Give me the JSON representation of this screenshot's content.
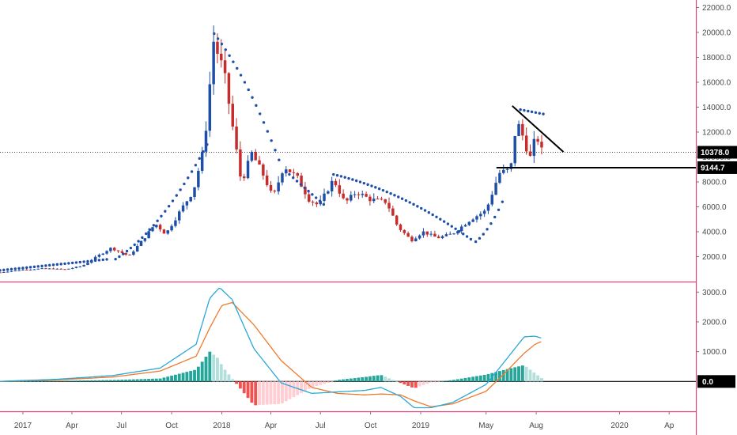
{
  "chart_data": [
    {
      "type": "candlestick",
      "panel": "price",
      "timeframe": "weekly",
      "x_range": [
        "2016-11-20",
        "2020-05-20"
      ],
      "ylim": [
        0,
        22600
      ],
      "y_ticks": [
        2000,
        4000,
        6000,
        8000,
        10000,
        12000,
        14000,
        16000,
        18000,
        20000,
        22000
      ],
      "y_tick_labels": [
        "2000.0",
        "4000.0",
        "6000.0",
        "8000.0",
        "10000.0",
        "12000.0",
        "14000.0",
        "16000.0",
        "18000.0",
        "20000.0",
        "22000.0"
      ],
      "x_ticks": [
        {
          "date": "2017-01-01",
          "label": "2017"
        },
        {
          "date": "2017-04-01",
          "label": "Apr"
        },
        {
          "date": "2017-07-01",
          "label": "Jul"
        },
        {
          "date": "2017-10-01",
          "label": "Oct"
        },
        {
          "date": "2018-01-01",
          "label": "2018"
        },
        {
          "date": "2018-04-01",
          "label": "Apr"
        },
        {
          "date": "2018-07-01",
          "label": "Jul"
        },
        {
          "date": "2018-10-01",
          "label": "Oct"
        },
        {
          "date": "2019-01-01",
          "label": "2019"
        },
        {
          "date": "2019-05-01",
          "label": "May"
        },
        {
          "date": "2019-08-01",
          "label": "Aug"
        },
        {
          "date": "2020-01-01",
          "label": "2020"
        },
        {
          "date": "2020-04-01",
          "label": "Ap"
        }
      ],
      "close_anchors": [
        [
          "2016-11-20",
          740
        ],
        [
          "2017-01-01",
          950
        ],
        [
          "2017-02-10",
          1050
        ],
        [
          "2017-03-20",
          980
        ],
        [
          "2017-04-20",
          1250
        ],
        [
          "2017-05-20",
          2100
        ],
        [
          "2017-06-12",
          2700
        ],
        [
          "2017-07-15",
          2050
        ],
        [
          "2017-08-10",
          3400
        ],
        [
          "2017-09-01",
          4650
        ],
        [
          "2017-09-20",
          3800
        ],
        [
          "2017-10-20",
          5900
        ],
        [
          "2017-11-10",
          7300
        ],
        [
          "2017-11-30",
          10900
        ],
        [
          "2017-12-17",
          19300
        ],
        [
          "2018-01-05",
          16800
        ],
        [
          "2018-01-25",
          11300
        ],
        [
          "2018-02-06",
          7900
        ],
        [
          "2018-02-25",
          10300
        ],
        [
          "2018-03-20",
          8400
        ],
        [
          "2018-04-05",
          6700
        ],
        [
          "2018-04-25",
          9300
        ],
        [
          "2018-05-20",
          8300
        ],
        [
          "2018-06-10",
          6600
        ],
        [
          "2018-06-28",
          6100
        ],
        [
          "2018-07-25",
          8200
        ],
        [
          "2018-08-15",
          6300
        ],
        [
          "2018-09-05",
          7200
        ],
        [
          "2018-09-30",
          6600
        ],
        [
          "2018-10-30",
          6400
        ],
        [
          "2018-11-20",
          4400
        ],
        [
          "2018-12-15",
          3300
        ],
        [
          "2019-01-05",
          4000
        ],
        [
          "2019-02-01",
          3500
        ],
        [
          "2019-03-01",
          3850
        ],
        [
          "2019-04-03",
          5000
        ],
        [
          "2019-05-01",
          5700
        ],
        [
          "2019-05-25",
          8700
        ],
        [
          "2019-06-15",
          9000
        ],
        [
          "2019-06-26",
          12900
        ],
        [
          "2019-07-10",
          11400
        ],
        [
          "2019-07-20",
          9800
        ],
        [
          "2019-08-01",
          11800
        ],
        [
          "2019-08-12",
          10378
        ]
      ],
      "sar_segments": [
        {
          "from": "2016-11-20",
          "to": "2017-06-08",
          "v0": 900,
          "v1": 1800,
          "a": 0
        },
        {
          "from": "2017-06-20",
          "to": "2017-12-05",
          "v0": 1800,
          "v1": 11000,
          "a": 0.5
        },
        {
          "from": "2017-12-18",
          "to": "2018-04-20",
          "v0": 19900,
          "v1": 9300,
          "a": 0.35
        },
        {
          "from": "2018-05-05",
          "to": "2018-07-12",
          "v0": 8600,
          "v1": 6000,
          "a": 0
        },
        {
          "from": "2018-07-25",
          "to": "2019-04-03",
          "v0": 8600,
          "v1": 3400,
          "a": 0.5
        },
        {
          "from": "2019-04-12",
          "to": "2019-06-05",
          "v0": 3200,
          "v1": 6900,
          "a": 0.5
        },
        {
          "from": "2019-07-03",
          "to": "2019-08-20",
          "v0": 13800,
          "v1": 13400,
          "a": 0
        }
      ],
      "trendlines": [
        {
          "from": "2019-06-18",
          "v0": 14100,
          "to": "2019-09-20",
          "v1": 10400
        },
        {
          "from": "2019-05-20",
          "v0": 9144.7,
          "to": "2020-05-20",
          "v1": 9144.7
        }
      ],
      "current_price": {
        "value": 10378.0,
        "label": "10378.0"
      },
      "level_label": {
        "value": 9144.7,
        "label": "9144.7"
      },
      "colors": {
        "up": "#1e4fa8",
        "down": "#c62c2c",
        "sar": "#1e4fa8",
        "line": "#000000"
      }
    },
    {
      "type": "macd",
      "panel": "indicator",
      "ylim": [
        -1000,
        3300
      ],
      "y_ticks": [
        3000,
        2000,
        1000,
        0
      ],
      "y_tick_labels": [
        "3000.0",
        "2000.0",
        "1000.0",
        "0.0"
      ],
      "zero_label": "0.0",
      "macd_anchors": [
        [
          "2016-11-20",
          5
        ],
        [
          "2017-03-01",
          70
        ],
        [
          "2017-06-15",
          200
        ],
        [
          "2017-09-10",
          450
        ],
        [
          "2017-11-15",
          1250
        ],
        [
          "2017-12-10",
          2800
        ],
        [
          "2017-12-28",
          3150
        ],
        [
          "2018-01-20",
          2750
        ],
        [
          "2018-03-01",
          1100
        ],
        [
          "2018-04-20",
          -50
        ],
        [
          "2018-06-15",
          -400
        ],
        [
          "2018-08-01",
          -350
        ],
        [
          "2018-09-20",
          -300
        ],
        [
          "2018-10-20",
          -200
        ],
        [
          "2018-11-25",
          -500
        ],
        [
          "2018-12-20",
          -880
        ],
        [
          "2019-01-20",
          -880
        ],
        [
          "2019-03-01",
          -700
        ],
        [
          "2019-05-01",
          -100
        ],
        [
          "2019-06-01",
          600
        ],
        [
          "2019-07-10",
          1500
        ],
        [
          "2019-07-30",
          1520
        ],
        [
          "2019-08-12",
          1450
        ]
      ],
      "signal_anchors": [
        [
          "2016-11-20",
          0
        ],
        [
          "2017-03-01",
          50
        ],
        [
          "2017-06-15",
          150
        ],
        [
          "2017-09-10",
          350
        ],
        [
          "2017-11-15",
          850
        ],
        [
          "2017-12-10",
          1800
        ],
        [
          "2018-01-01",
          2550
        ],
        [
          "2018-01-20",
          2650
        ],
        [
          "2018-03-01",
          1900
        ],
        [
          "2018-04-20",
          700
        ],
        [
          "2018-06-15",
          -200
        ],
        [
          "2018-08-01",
          -400
        ],
        [
          "2018-09-20",
          -450
        ],
        [
          "2018-10-20",
          -420
        ],
        [
          "2018-11-25",
          -450
        ],
        [
          "2018-12-20",
          -650
        ],
        [
          "2019-01-20",
          -850
        ],
        [
          "2019-03-01",
          -750
        ],
        [
          "2019-05-01",
          -330
        ],
        [
          "2019-06-01",
          220
        ],
        [
          "2019-07-10",
          950
        ],
        [
          "2019-07-30",
          1250
        ],
        [
          "2019-08-12",
          1350
        ]
      ],
      "colors": {
        "macd": "#2aa8d8",
        "signal": "#f07a2a",
        "hist_pos_strong": "#26a69a",
        "hist_pos_weak": "#b2dfdb",
        "hist_neg_strong": "#ef5350",
        "hist_neg_weak": "#ffcdd2"
      }
    }
  ]
}
